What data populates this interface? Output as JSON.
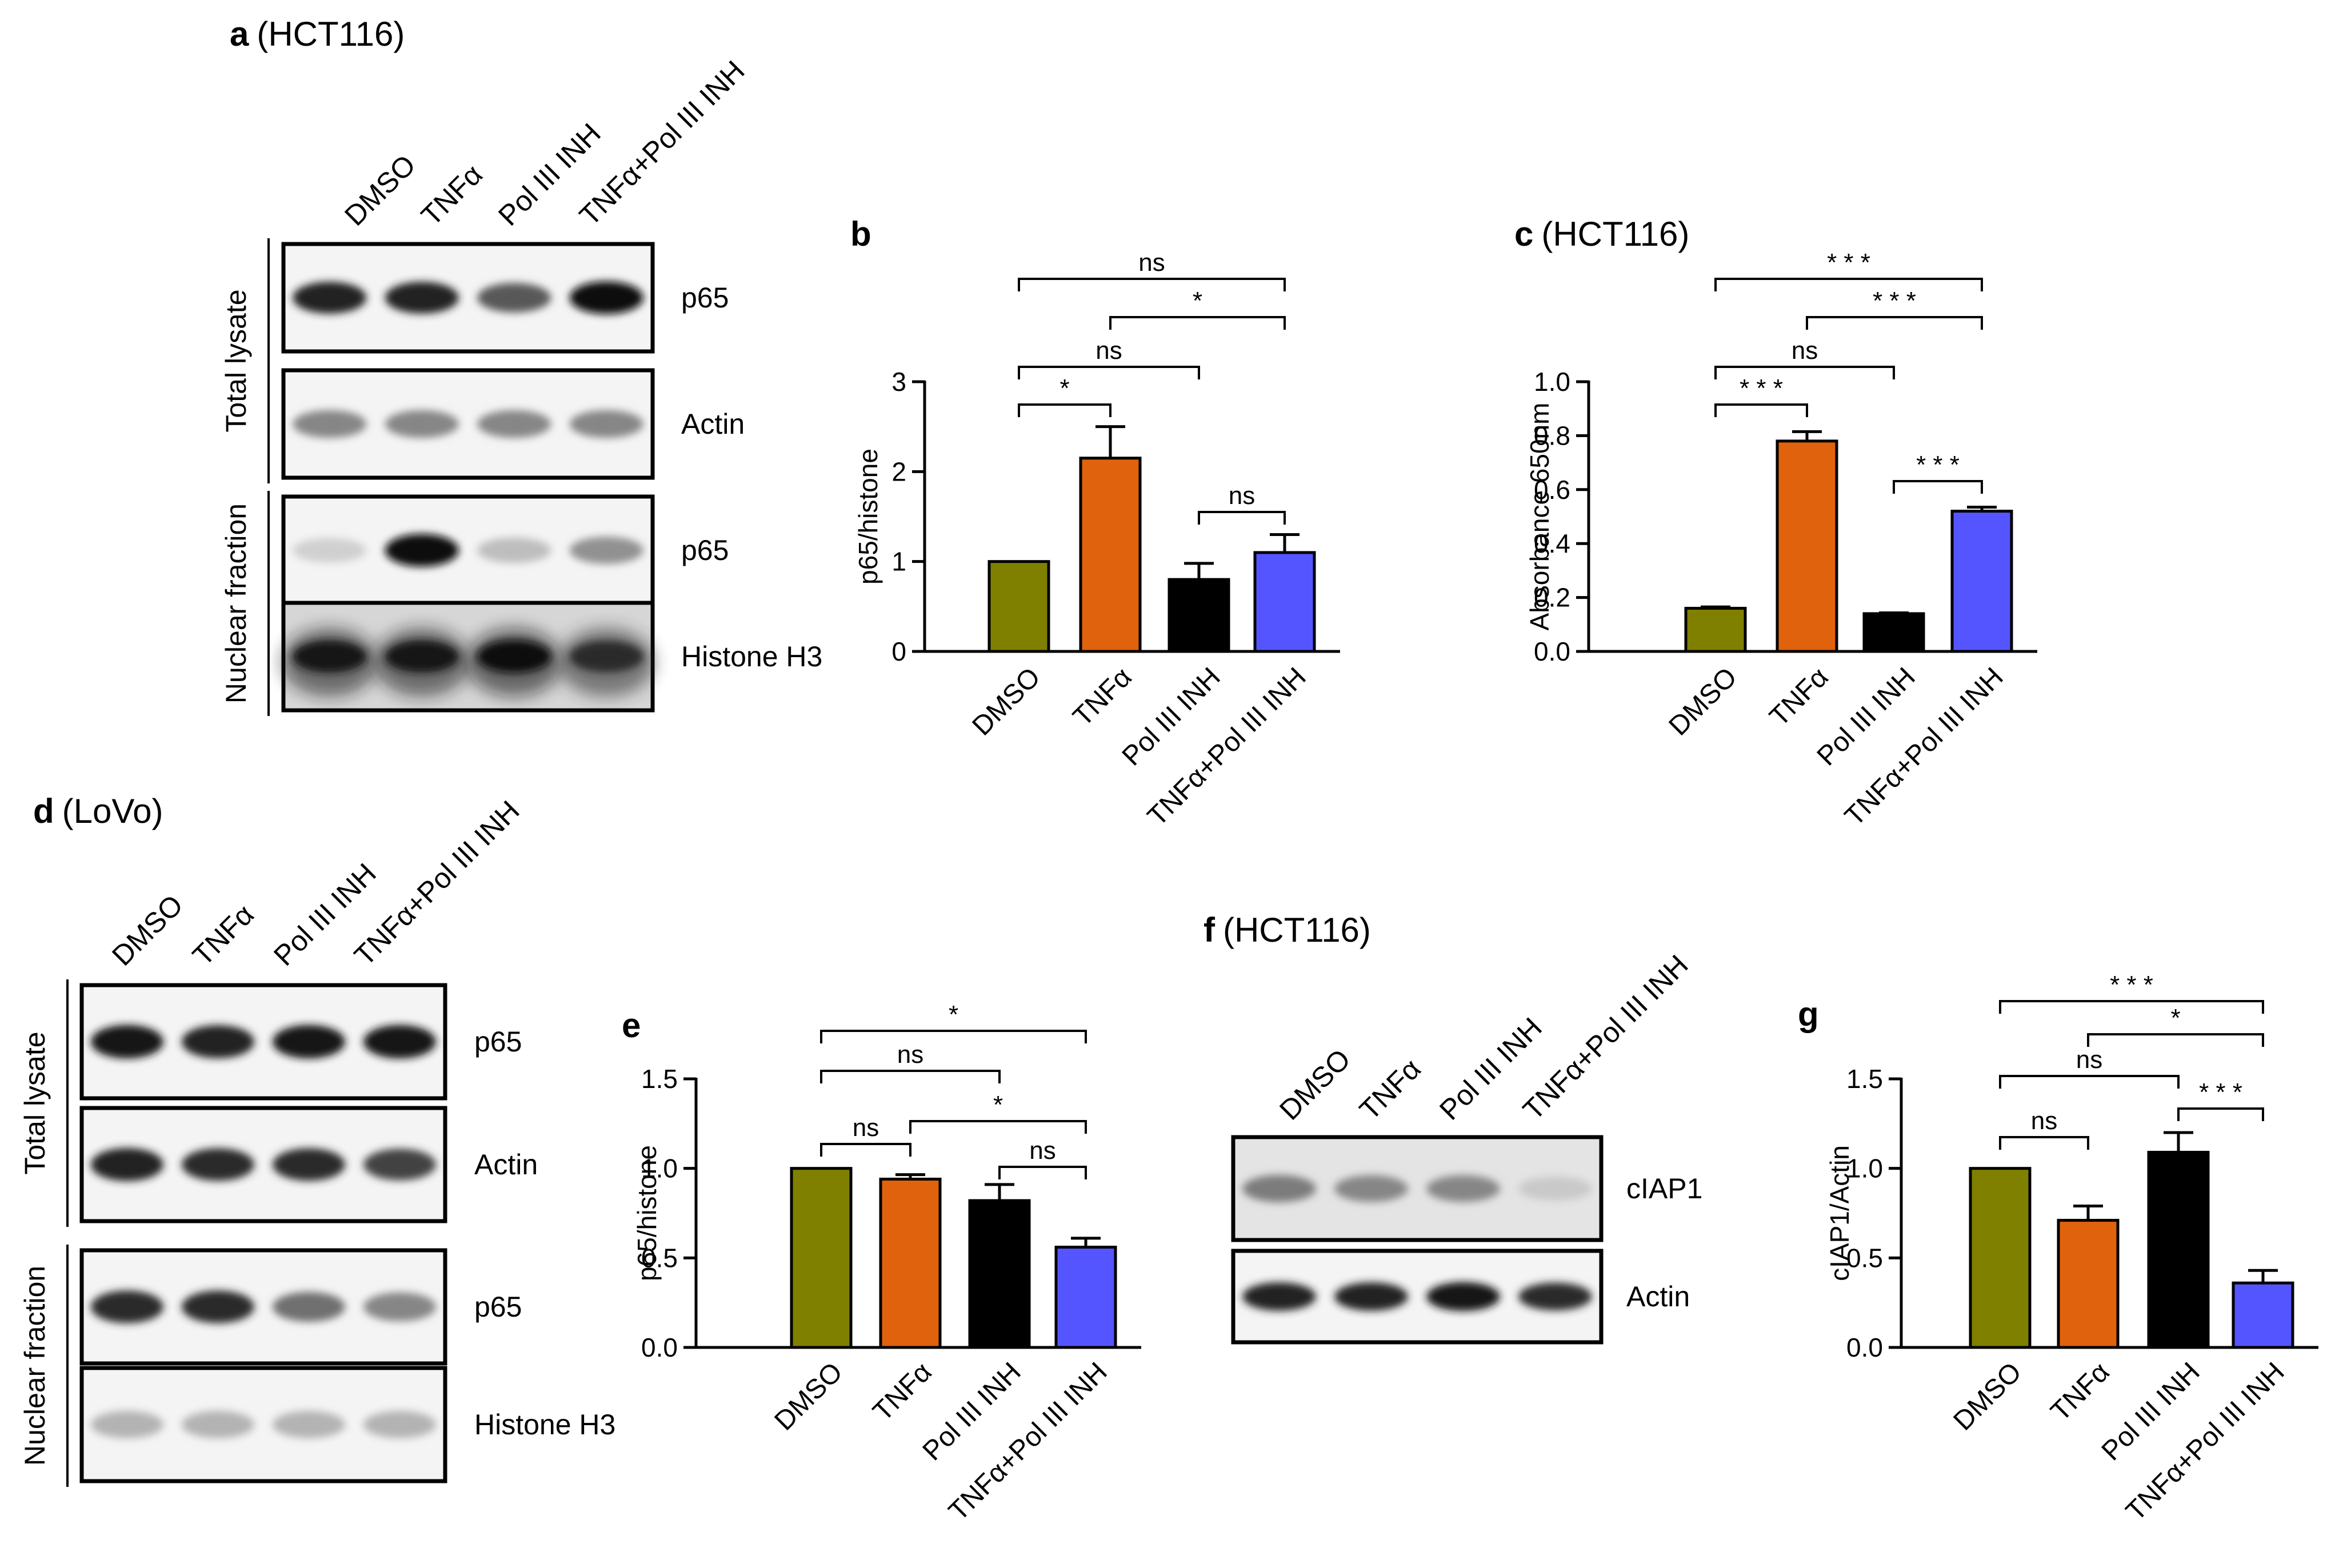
{
  "colors": {
    "DMSO": "#808000",
    "TNFa": "#e0620d",
    "PolIII": "#000000",
    "Combo": "#5555ff"
  },
  "categories": [
    "DMSO",
    "TNFα",
    "Pol III INH",
    "TNFα+Pol III INH"
  ],
  "blots": {
    "a": {
      "label": "a",
      "cell": "(HCT116)",
      "lanes": [
        "DMSO",
        "TNFα",
        "Pol III INH",
        "TNFα+Pol III INH"
      ],
      "groups": [
        {
          "name": "Total lysate",
          "rows": [
            {
              "protein": "p65",
              "bands": [
                0.9,
                0.9,
                0.65,
                1.0
              ],
              "bg": 0.04,
              "halo": false
            },
            {
              "protein": "Actin",
              "bands": [
                0.45,
                0.45,
                0.45,
                0.45
              ],
              "bg": 0.04,
              "halo": false
            }
          ]
        },
        {
          "name": "Nuclear fraction",
          "rows": [
            {
              "protein": "p65",
              "bands": [
                0.12,
                1.0,
                0.2,
                0.4
              ],
              "bg": 0.04,
              "halo": false
            },
            {
              "protein": "Histone H3",
              "bands": [
                0.95,
                0.95,
                1.0,
                0.85
              ],
              "bg": 0.15,
              "halo": true
            }
          ]
        }
      ]
    },
    "d": {
      "label": "d",
      "cell": "(LoVo)",
      "lanes": [
        "DMSO",
        "TNFα",
        "Pol III INH",
        "TNFα+Pol III INH"
      ],
      "groups": [
        {
          "name": "Total lysate",
          "rows": [
            {
              "protein": "p65",
              "bands": [
                0.95,
                0.9,
                0.95,
                0.95
              ],
              "bg": 0.04,
              "halo": false
            },
            {
              "protein": "Actin",
              "bands": [
                0.9,
                0.85,
                0.85,
                0.75
              ],
              "bg": 0.04,
              "halo": false
            }
          ]
        },
        {
          "name": "Nuclear fraction",
          "rows": [
            {
              "protein": "p65",
              "bands": [
                0.85,
                0.85,
                0.55,
                0.45
              ],
              "bg": 0.04,
              "halo": false
            },
            {
              "protein": "Histone H3",
              "bands": [
                0.25,
                0.25,
                0.25,
                0.25
              ],
              "bg": 0.04,
              "halo": false
            }
          ]
        }
      ]
    },
    "f": {
      "label": "f",
      "cell": "(HCT116)",
      "lanes": [
        "DMSO",
        "TNFα",
        "Pol III INH",
        "TNFα+Pol III INH"
      ],
      "groups": [
        {
          "name": "",
          "rows": [
            {
              "protein": "cIAP1",
              "bands": [
                0.5,
                0.45,
                0.45,
                0.15
              ],
              "bg": 0.08,
              "halo": false
            },
            {
              "protein": "Actin",
              "bands": [
                0.9,
                0.9,
                0.95,
                0.85
              ],
              "bg": 0.04,
              "halo": false
            }
          ]
        }
      ]
    }
  },
  "chart_data": [
    {
      "panel": "b",
      "type": "bar",
      "title": "",
      "categories": [
        "DMSO",
        "TNFα",
        "Pol III INH",
        "TNFα+Pol III INH"
      ],
      "values": [
        1.0,
        2.15,
        0.8,
        1.1
      ],
      "errors": [
        0,
        0.35,
        0.18,
        0.2
      ],
      "ylabel": "p65/histone",
      "ylim": [
        0,
        3
      ],
      "yticks": [
        "0",
        "1",
        "2",
        "3"
      ],
      "comparisons": [
        {
          "from": 0,
          "to": 3,
          "label": "ns"
        },
        {
          "from": 1,
          "to": 3,
          "label": "*"
        },
        {
          "from": 0,
          "to": 2,
          "label": "ns"
        },
        {
          "from": 0,
          "to": 1,
          "label": "*"
        },
        {
          "from": 2,
          "to": 3,
          "label": "ns"
        }
      ]
    },
    {
      "panel": "c",
      "cell": "(HCT116)",
      "type": "bar",
      "title": "",
      "categories": [
        "DMSO",
        "TNFα",
        "Pol III INH",
        "TNFα+Pol III INH"
      ],
      "values": [
        0.16,
        0.78,
        0.14,
        0.52
      ],
      "errors": [
        0.005,
        0.035,
        0.003,
        0.015
      ],
      "ylabel": "Absorbance 650nm",
      "ylim": [
        0,
        1.0
      ],
      "yticks": [
        "0.0",
        "0.2",
        "0.4",
        "0.6",
        "0.8",
        "1.0"
      ],
      "comparisons": [
        {
          "from": 0,
          "to": 3,
          "label": "* * *"
        },
        {
          "from": 1,
          "to": 3,
          "label": "* * *"
        },
        {
          "from": 0,
          "to": 2,
          "label": "ns"
        },
        {
          "from": 0,
          "to": 1,
          "label": "* * *"
        },
        {
          "from": 2,
          "to": 3,
          "label": "* * *"
        }
      ]
    },
    {
      "panel": "e",
      "type": "bar",
      "title": "",
      "categories": [
        "DMSO",
        "TNFα",
        "Pol III INH",
        "TNFα+Pol III INH"
      ],
      "values": [
        1.0,
        0.94,
        0.82,
        0.56
      ],
      "errors": [
        0,
        0.025,
        0.09,
        0.05
      ],
      "ylabel": "p65/histone",
      "ylim": [
        0,
        1.5
      ],
      "yticks": [
        "0.0",
        "0.5",
        "1.0",
        "1.5"
      ],
      "comparisons": [
        {
          "from": 0,
          "to": 3,
          "label": "*"
        },
        {
          "from": 0,
          "to": 2,
          "label": "ns"
        },
        {
          "from": 1,
          "to": 3,
          "label": "*"
        },
        {
          "from": 0,
          "to": 1,
          "label": "ns"
        },
        {
          "from": 2,
          "to": 3,
          "label": "ns"
        }
      ]
    },
    {
      "panel": "g",
      "type": "bar",
      "title": "",
      "categories": [
        "DMSO",
        "TNFα",
        "Pol III INH",
        "TNFα+Pol III INH"
      ],
      "values": [
        1.0,
        0.71,
        1.09,
        0.36
      ],
      "errors": [
        0,
        0.08,
        0.11,
        0.07
      ],
      "ylabel": "cIAP1/Actin",
      "ylim": [
        0,
        1.5
      ],
      "yticks": [
        "0.0",
        "0.5",
        "1.0",
        "1.5"
      ],
      "comparisons": [
        {
          "from": 0,
          "to": 3,
          "label": "* * *"
        },
        {
          "from": 1,
          "to": 3,
          "label": "*"
        },
        {
          "from": 0,
          "to": 2,
          "label": "ns"
        },
        {
          "from": 0,
          "to": 1,
          "label": "ns"
        },
        {
          "from": 2,
          "to": 3,
          "label": "* * *"
        }
      ]
    }
  ]
}
